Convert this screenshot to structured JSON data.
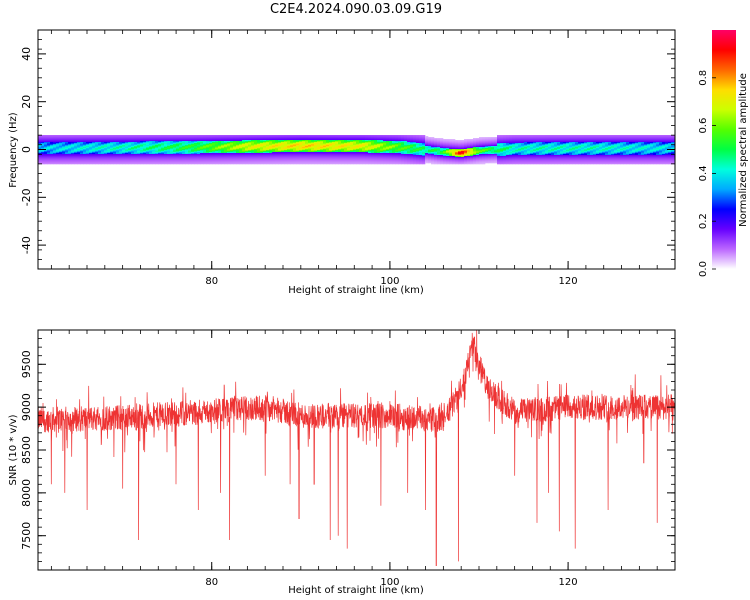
{
  "figure_title": "C2E4.2024.090.03.09.G19",
  "chart_data": [
    {
      "type": "heatmap",
      "xlabel": "Height of straight line (km)",
      "ylabel": "Frequency (Hz)",
      "xlim": [
        60.5,
        132
      ],
      "ylim": [
        -50,
        50
      ],
      "x_ticks": [
        80,
        100,
        120
      ],
      "y_ticks": [
        -40,
        -20,
        0,
        20,
        40
      ],
      "colorbar": {
        "label": "Normalized spectral amplitude",
        "range": [
          0,
          1
        ],
        "ticks": [
          "0.0",
          "0.2",
          "0.4",
          "0.6",
          "0.8"
        ],
        "colors": [
          "#ffffff",
          "#bb66ff",
          "#6600ff",
          "#0000ff",
          "#00aaff",
          "#00ffdd",
          "#00ff44",
          "#55ff00",
          "#ccff00",
          "#ffdd00",
          "#ff6600",
          "#ff0000",
          "#ff0066"
        ]
      },
      "band_profile": [
        {
          "x": 60.5,
          "center": 0.5,
          "peak": 0.38
        },
        {
          "x": 70,
          "center": 0.7,
          "peak": 0.45
        },
        {
          "x": 78,
          "center": 0.9,
          "peak": 0.55
        },
        {
          "x": 84,
          "center": 1.2,
          "peak": 0.72
        },
        {
          "x": 90,
          "center": 1.5,
          "peak": 0.78
        },
        {
          "x": 97,
          "center": 1.4,
          "peak": 0.74
        },
        {
          "x": 101,
          "center": 1.0,
          "peak": 0.6
        },
        {
          "x": 104,
          "center": 0.0,
          "peak": 0.5
        },
        {
          "x": 106,
          "center": -1.0,
          "peak": 0.55
        },
        {
          "x": 108,
          "center": -1.5,
          "peak": 0.98
        },
        {
          "x": 110,
          "center": -0.5,
          "peak": 0.6
        },
        {
          "x": 114,
          "center": 0.3,
          "peak": 0.45
        },
        {
          "x": 122,
          "center": 0.5,
          "peak": 0.45
        },
        {
          "x": 132,
          "center": 0.5,
          "peak": 0.4
        }
      ]
    },
    {
      "type": "line",
      "xlabel": "Height of straight line (km)",
      "ylabel": "SNR (10 * v/v)",
      "xlim": [
        60.5,
        132
      ],
      "ylim": [
        7100,
        9900
      ],
      "x_ticks": [
        80,
        100,
        120
      ],
      "y_ticks": [
        7500,
        8000,
        8500,
        9000,
        9500
      ],
      "series_color": "#ee3333",
      "baseline": [
        {
          "x": 60.5,
          "y": 8850
        },
        {
          "x": 70,
          "y": 8880
        },
        {
          "x": 80,
          "y": 8950
        },
        {
          "x": 86,
          "y": 9000
        },
        {
          "x": 90,
          "y": 8900
        },
        {
          "x": 100,
          "y": 8900
        },
        {
          "x": 106,
          "y": 8850
        },
        {
          "x": 108,
          "y": 9200
        },
        {
          "x": 109.3,
          "y": 9750
        },
        {
          "x": 111,
          "y": 9200
        },
        {
          "x": 114,
          "y": 8950
        },
        {
          "x": 120,
          "y": 9000
        },
        {
          "x": 132,
          "y": 9000
        }
      ],
      "dips": [
        {
          "x": 62.0,
          "y": 8100
        },
        {
          "x": 63.5,
          "y": 8000
        },
        {
          "x": 66.0,
          "y": 7800
        },
        {
          "x": 70.0,
          "y": 8050
        },
        {
          "x": 71.8,
          "y": 7450
        },
        {
          "x": 76.0,
          "y": 8100
        },
        {
          "x": 78.5,
          "y": 7800
        },
        {
          "x": 81.0,
          "y": 8000
        },
        {
          "x": 82.0,
          "y": 7450
        },
        {
          "x": 86.0,
          "y": 8200
        },
        {
          "x": 88.8,
          "y": 8100
        },
        {
          "x": 89.8,
          "y": 7700
        },
        {
          "x": 91.5,
          "y": 8100
        },
        {
          "x": 93.3,
          "y": 7450
        },
        {
          "x": 94.2,
          "y": 7500
        },
        {
          "x": 95.2,
          "y": 7350
        },
        {
          "x": 99.0,
          "y": 7850
        },
        {
          "x": 102.0,
          "y": 8000
        },
        {
          "x": 104.0,
          "y": 7800
        },
        {
          "x": 105.2,
          "y": 7150
        },
        {
          "x": 107.7,
          "y": 7200
        },
        {
          "x": 114.0,
          "y": 8200
        },
        {
          "x": 116.5,
          "y": 7650
        },
        {
          "x": 117.8,
          "y": 8000
        },
        {
          "x": 119.0,
          "y": 7550
        },
        {
          "x": 120.8,
          "y": 7350
        },
        {
          "x": 124.5,
          "y": 7800
        },
        {
          "x": 128.5,
          "y": 8350
        },
        {
          "x": 130.0,
          "y": 7650
        }
      ]
    }
  ]
}
